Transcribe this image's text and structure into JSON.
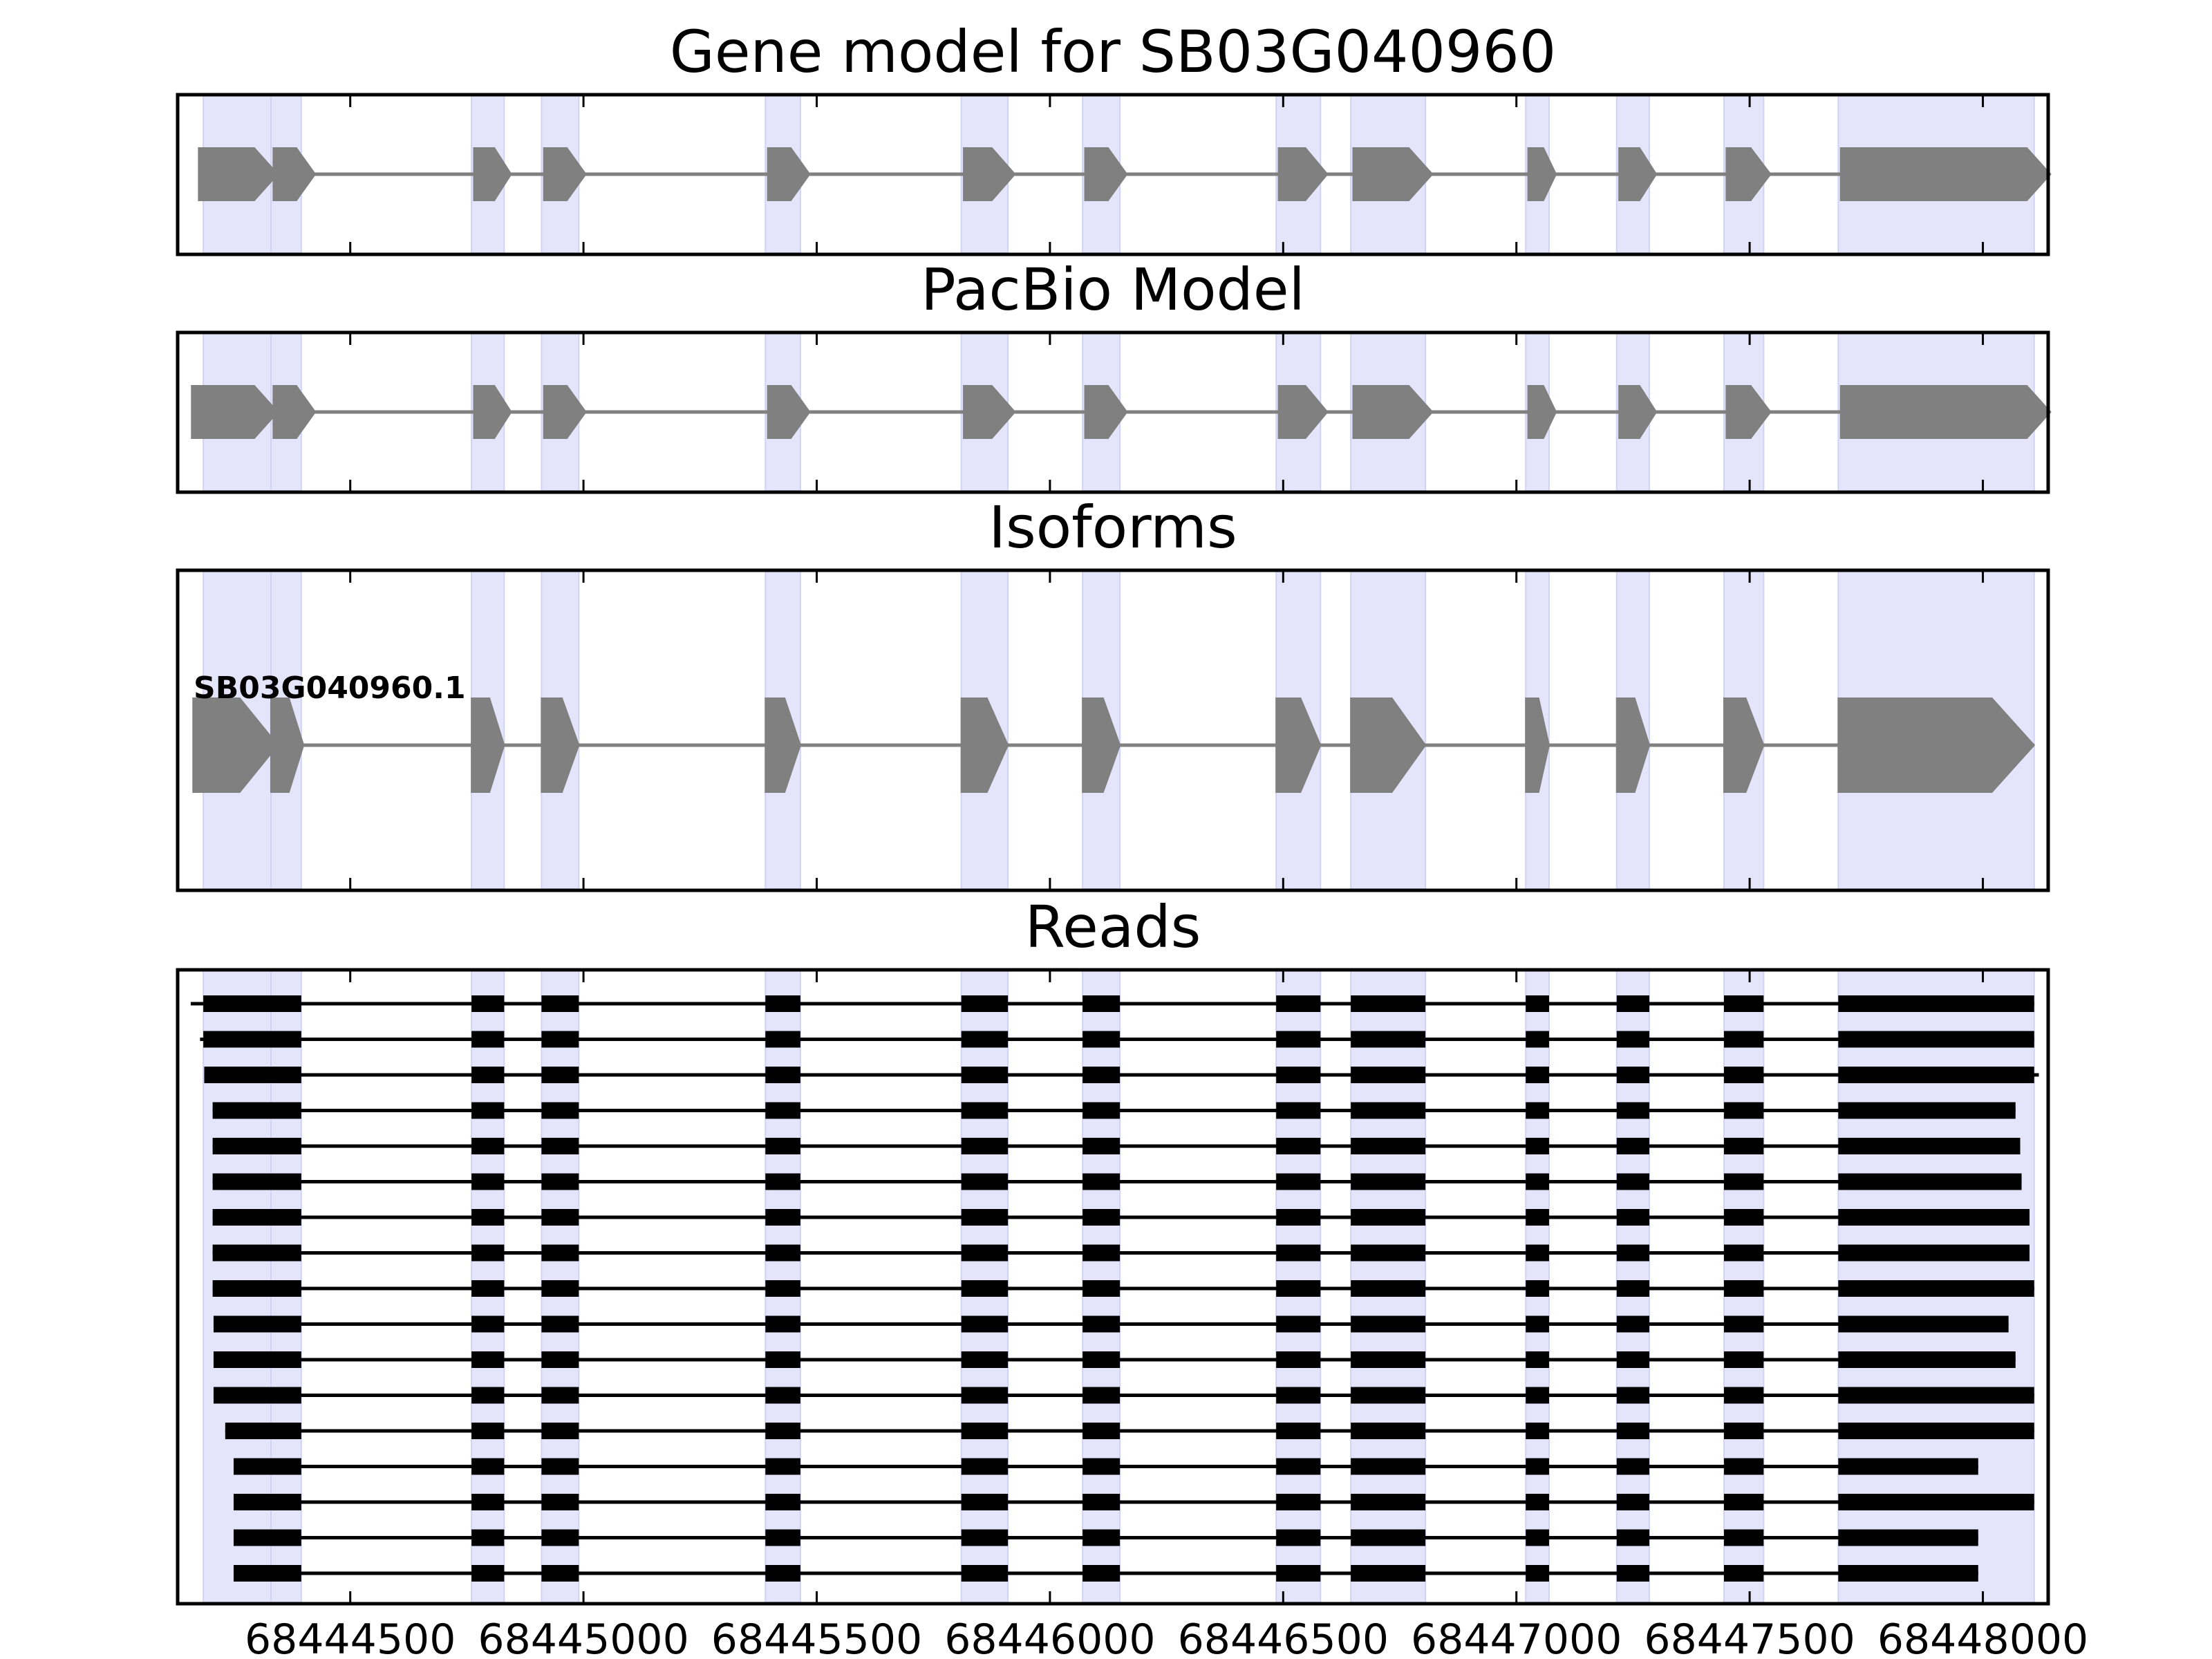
{
  "chart_data": {
    "type": "gene-structure",
    "xlim": [
      68444130,
      68448140
    ],
    "xticks": [
      68444500,
      68445000,
      68445500,
      68446000,
      68446500,
      68447000,
      68447500,
      68448000
    ],
    "xtick_labels": [
      "68444500",
      "68445000",
      "68445500",
      "68446000",
      "68446500",
      "68447000",
      "68447500",
      "68448000"
    ],
    "strand": "+",
    "highlight_color": "#e4e4fb",
    "feature_color": "#808080",
    "read_color": "#000000",
    "exons": [
      [
        68444185,
        68444345
      ],
      [
        68444330,
        68444395
      ],
      [
        68444760,
        68444830
      ],
      [
        68444910,
        68444990
      ],
      [
        68445390,
        68445465
      ],
      [
        68445810,
        68445910
      ],
      [
        68446070,
        68446150
      ],
      [
        68446485,
        68446580
      ],
      [
        68446645,
        68446805
      ],
      [
        68447020,
        68447070
      ],
      [
        68447215,
        68447285
      ],
      [
        68447445,
        68447530
      ],
      [
        68447690,
        68448110
      ]
    ],
    "panels": [
      {
        "title": "Gene model for SB03G040960",
        "models": [
          {
            "exons": [
              [
                68444175,
                68444345
              ],
              [
                68444335,
                68444425
              ],
              [
                68444765,
                68444845
              ],
              [
                68444915,
                68445005
              ],
              [
                68445395,
                68445485
              ],
              [
                68445815,
                68445925
              ],
              [
                68446075,
                68446165
              ],
              [
                68446490,
                68446595
              ],
              [
                68446650,
                68446820
              ],
              [
                68447025,
                68447085
              ],
              [
                68447220,
                68447300
              ],
              [
                68447450,
                68447545
              ],
              [
                68447695,
                68448145
              ]
            ]
          }
        ]
      },
      {
        "title": "PacBio Model",
        "models": [
          {
            "exons": [
              [
                68444160,
                68444345
              ],
              [
                68444335,
                68444425
              ],
              [
                68444765,
                68444845
              ],
              [
                68444915,
                68445005
              ],
              [
                68445395,
                68445485
              ],
              [
                68445815,
                68445925
              ],
              [
                68446075,
                68446165
              ],
              [
                68446490,
                68446595
              ],
              [
                68446650,
                68446820
              ],
              [
                68447025,
                68447085
              ],
              [
                68447220,
                68447300
              ],
              [
                68447450,
                68447545
              ],
              [
                68447695,
                68448145
              ]
            ]
          }
        ]
      },
      {
        "title": "Isoforms",
        "models": [
          {
            "label": "SB03G040960.1",
            "exons": [
              [
                68444163,
                68444345
              ],
              [
                68444330,
                68444400
              ],
              [
                68444760,
                68444830
              ],
              [
                68444910,
                68444990
              ],
              [
                68445390,
                68445465
              ],
              [
                68445810,
                68445910
              ],
              [
                68446070,
                68446150
              ],
              [
                68446485,
                68446580
              ],
              [
                68446645,
                68446805
              ],
              [
                68447020,
                68447070
              ],
              [
                68447215,
                68447285
              ],
              [
                68447445,
                68447530
              ],
              [
                68447690,
                68448110
              ]
            ]
          }
        ]
      },
      {
        "title": "Reads",
        "read_starts": [
          68444158,
          68444178,
          68444187,
          68444205,
          68444205,
          68444205,
          68444205,
          68444205,
          68444205,
          68444207,
          68444207,
          68444207,
          68444232,
          68444250,
          68444250,
          68444250,
          68444250
        ],
        "read_ends": [
          68448110,
          68448110,
          68448120,
          68448070,
          68448080,
          68448083,
          68448100,
          68448100,
          68448110,
          68448055,
          68448070,
          68448110,
          68448110,
          68447990,
          68448110,
          68447990,
          68447990
        ]
      }
    ]
  }
}
